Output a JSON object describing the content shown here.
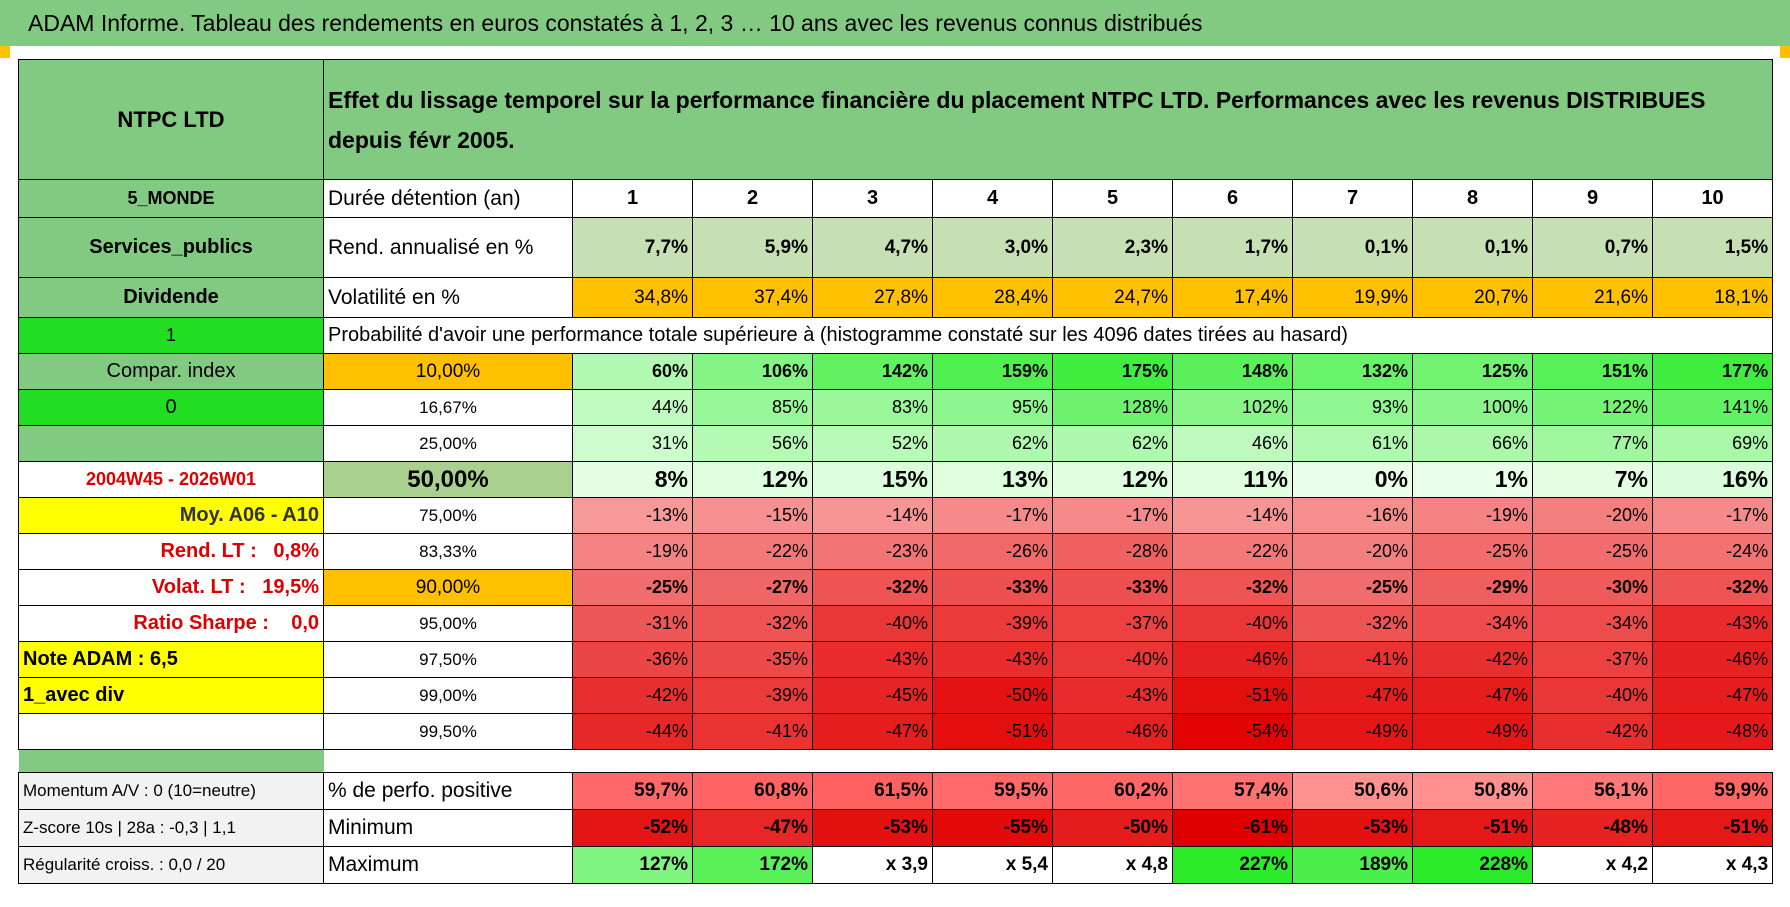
{
  "header": {
    "title": "ADAM Informe. Tableau des rendements en euros constatés à 1, 2, 3 … 10 ans avec les revenus connus distribués"
  },
  "table": {
    "name": "NTPC LTD",
    "description": "Effet du lissage temporel sur la performance financière du placement NTPC LTD. Performances avec les revenus DISTRIBUES depuis févr 2005.",
    "rows": [
      {
        "side": "5_MONDE",
        "label": "Durée détention (an)",
        "cells": [
          "1",
          "2",
          "3",
          "4",
          "5",
          "6",
          "7",
          "8",
          "9",
          "10"
        ]
      },
      {
        "side": "Services_publics",
        "label": "Rend. annualisé en %",
        "cells": [
          "7,7%",
          "5,9%",
          "4,7%",
          "3,0%",
          "2,3%",
          "1,7%",
          "0,1%",
          "0,1%",
          "0,7%",
          "1,5%"
        ]
      },
      {
        "side": "Dividende",
        "label": "Volatilité en %",
        "cells": [
          "34,8%",
          "37,4%",
          "27,8%",
          "28,4%",
          "24,7%",
          "17,4%",
          "19,9%",
          "20,7%",
          "21,6%",
          "18,1%"
        ]
      },
      {
        "side": "1",
        "note": "Probabilité d'avoir une performance totale supérieure à (histogramme constaté sur les 4096 dates tirées au hasard)"
      },
      {
        "side": "Compar. index",
        "label": "10,00%",
        "cells": [
          "60%",
          "106%",
          "142%",
          "159%",
          "175%",
          "148%",
          "132%",
          "125%",
          "151%",
          "177%"
        ]
      },
      {
        "side": "0",
        "label": "16,67%",
        "cells": [
          "44%",
          "85%",
          "83%",
          "95%",
          "128%",
          "102%",
          "93%",
          "100%",
          "122%",
          "141%"
        ]
      },
      {
        "label": "25,00%",
        "cells": [
          "31%",
          "56%",
          "52%",
          "62%",
          "62%",
          "46%",
          "61%",
          "66%",
          "77%",
          "69%"
        ]
      },
      {
        "side": "2004W45 - 2026W01",
        "label": "50,00%",
        "cells": [
          "8%",
          "12%",
          "15%",
          "13%",
          "12%",
          "11%",
          "0%",
          "1%",
          "7%",
          "16%"
        ]
      },
      {
        "side": "Moy. A06 - A10",
        "label": "75,00%",
        "cells": [
          "-13%",
          "-15%",
          "-14%",
          "-17%",
          "-17%",
          "-14%",
          "-16%",
          "-19%",
          "-20%",
          "-17%"
        ]
      },
      {
        "side": "Rend. LT :   0,8%",
        "label": "83,33%",
        "cells": [
          "-19%",
          "-22%",
          "-23%",
          "-26%",
          "-28%",
          "-22%",
          "-20%",
          "-25%",
          "-25%",
          "-24%"
        ]
      },
      {
        "side": "Volat. LT :   19,5%",
        "label": "90,00%",
        "cells": [
          "-25%",
          "-27%",
          "-32%",
          "-33%",
          "-33%",
          "-32%",
          "-25%",
          "-29%",
          "-30%",
          "-32%"
        ]
      },
      {
        "side": "Ratio Sharpe :    0,0",
        "label": "95,00%",
        "cells": [
          "-31%",
          "-32%",
          "-40%",
          "-39%",
          "-37%",
          "-40%",
          "-32%",
          "-34%",
          "-34%",
          "-43%"
        ]
      },
      {
        "side": "Note ADAM : 6,5",
        "label": "97,50%",
        "cells": [
          "-36%",
          "-35%",
          "-43%",
          "-43%",
          "-40%",
          "-46%",
          "-41%",
          "-42%",
          "-37%",
          "-46%"
        ]
      },
      {
        "side": "1_avec div",
        "label": "99,00%",
        "cells": [
          "-42%",
          "-39%",
          "-45%",
          "-50%",
          "-43%",
          "-51%",
          "-47%",
          "-47%",
          "-40%",
          "-47%"
        ]
      },
      {
        "label": "99,50%",
        "cells": [
          "-44%",
          "-41%",
          "-47%",
          "-51%",
          "-46%",
          "-54%",
          "-49%",
          "-49%",
          "-42%",
          "-48%"
        ]
      },
      {
        "side": "Momentum A/V : 0 (10=neutre)",
        "label": "% de perfo. positive",
        "cells": [
          "59,7%",
          "60,8%",
          "61,5%",
          "59,5%",
          "60,2%",
          "57,4%",
          "50,6%",
          "50,8%",
          "56,1%",
          "59,9%"
        ]
      },
      {
        "side": "Z-score 10s | 28a : -0,3 | 1,1",
        "label": "Minimum",
        "cells": [
          "-52%",
          "-47%",
          "-53%",
          "-55%",
          "-50%",
          "-61%",
          "-53%",
          "-51%",
          "-48%",
          "-51%"
        ]
      },
      {
        "side": "Régularité croiss. : 0,0 / 20",
        "label": "Maximum",
        "cells": [
          "127%",
          "172%",
          "x 3,9",
          "x 5,4",
          "x 4,8",
          "227%",
          "189%",
          "228%",
          "x 4,2",
          "x 4,3"
        ]
      }
    ]
  }
}
